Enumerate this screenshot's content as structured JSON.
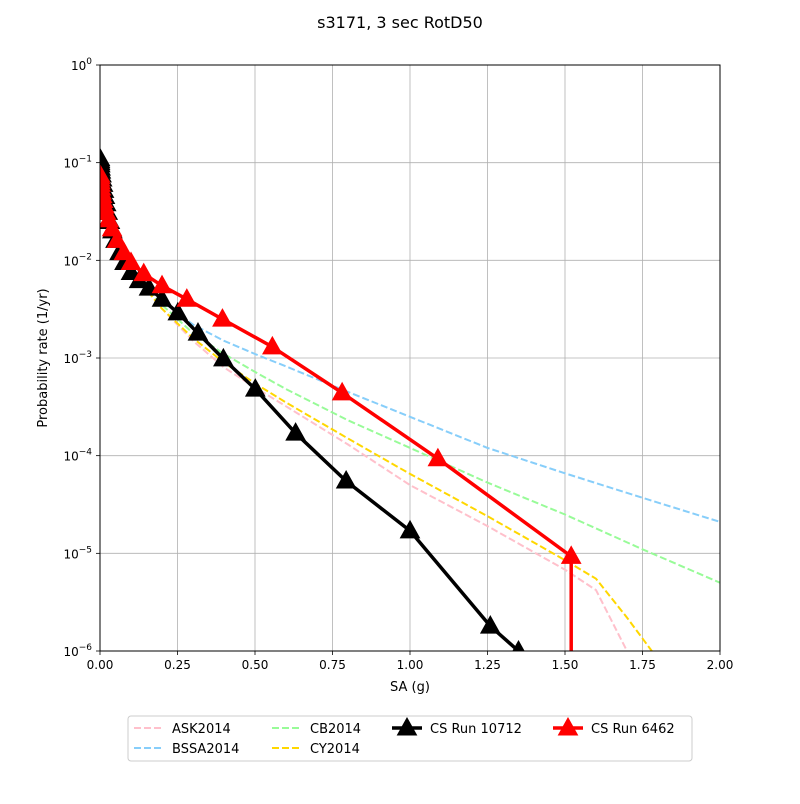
{
  "chart_data": {
    "type": "line",
    "title": "s3171, 3 sec RotD50",
    "xlabel": "SA (g)",
    "ylabel": "Probability rate (1/yr)",
    "xlim": [
      0,
      2.0
    ],
    "ylim": [
      1e-06,
      1
    ],
    "yscale": "log",
    "grid": true,
    "legend_position": "bottom-center",
    "xticks": [
      {
        "value": 0.0,
        "label": "0.00"
      },
      {
        "value": 0.25,
        "label": "0.25"
      },
      {
        "value": 0.5,
        "label": "0.50"
      },
      {
        "value": 0.75,
        "label": "0.75"
      },
      {
        "value": 1.0,
        "label": "1.00"
      },
      {
        "value": 1.25,
        "label": "1.25"
      },
      {
        "value": 1.5,
        "label": "1.50"
      },
      {
        "value": 1.75,
        "label": "1.75"
      },
      {
        "value": 2.0,
        "label": "2.00"
      }
    ],
    "yticks": [
      {
        "value": 1e-06,
        "base": "10",
        "exp": "−6"
      },
      {
        "value": 1e-05,
        "base": "10",
        "exp": "−5"
      },
      {
        "value": 0.0001,
        "base": "10",
        "exp": "−4"
      },
      {
        "value": 0.001,
        "base": "10",
        "exp": "−3"
      },
      {
        "value": 0.01,
        "base": "10",
        "exp": "−2"
      },
      {
        "value": 0.1,
        "base": "10",
        "exp": "−1"
      },
      {
        "value": 1,
        "base": "10",
        "exp": "0"
      }
    ],
    "series": [
      {
        "name": "ASK2014",
        "color": "#ffc0cb",
        "style": "dashed",
        "marker": "none",
        "x": [
          0.0001,
          0.05,
          0.1,
          0.15,
          0.2,
          0.3,
          0.4,
          0.5,
          0.6,
          0.8,
          1.0,
          1.25,
          1.5,
          1.6,
          1.7
        ],
        "y": [
          0.1,
          0.016,
          0.008,
          0.005,
          0.0032,
          0.0015,
          0.0008,
          0.0005,
          0.00032,
          0.00013,
          5e-05,
          1.9e-05,
          6.8e-06,
          4.2e-06,
          1e-06
        ]
      },
      {
        "name": "BSSA2014",
        "color": "#87cefa",
        "style": "dashed",
        "marker": "none",
        "x": [
          0.0001,
          0.05,
          0.1,
          0.15,
          0.2,
          0.3,
          0.4,
          0.5,
          0.6,
          0.8,
          1.0,
          1.25,
          1.5,
          1.75,
          2.0
        ],
        "y": [
          0.1,
          0.016,
          0.008,
          0.0055,
          0.0038,
          0.0022,
          0.0015,
          0.0011,
          0.00082,
          0.00045,
          0.00025,
          0.00012,
          6.6e-05,
          3.7e-05,
          2.1e-05
        ]
      },
      {
        "name": "CB2014",
        "color": "#98fb98",
        "style": "dashed",
        "marker": "none",
        "x": [
          0.0001,
          0.05,
          0.1,
          0.15,
          0.2,
          0.3,
          0.4,
          0.5,
          0.6,
          0.8,
          1.0,
          1.25,
          1.5,
          1.75,
          2.0
        ],
        "y": [
          0.1,
          0.016,
          0.008,
          0.005,
          0.0035,
          0.0018,
          0.0011,
          0.00072,
          0.00048,
          0.00023,
          0.00012,
          5.3e-05,
          2.5e-05,
          1.1e-05,
          5e-06
        ]
      },
      {
        "name": "CY2014",
        "color": "#ffd700",
        "style": "dashed",
        "marker": "none",
        "x": [
          0.0001,
          0.05,
          0.1,
          0.15,
          0.2,
          0.3,
          0.4,
          0.5,
          0.6,
          0.8,
          1.0,
          1.25,
          1.5,
          1.6,
          1.7,
          1.78
        ],
        "y": [
          0.1,
          0.016,
          0.008,
          0.005,
          0.0032,
          0.0016,
          0.0009,
          0.00055,
          0.00035,
          0.00015,
          6.5e-05,
          2.4e-05,
          8.5e-06,
          5.5e-06,
          2.2e-06,
          1e-06
        ]
      },
      {
        "name": "CS Run 10712",
        "color": "#000000",
        "style": "solid",
        "marker": "triangle",
        "x": [
          0.0001,
          0.0002,
          0.0005,
          0.001,
          0.002,
          0.003,
          0.005,
          0.007,
          0.01,
          0.013,
          0.016,
          0.02,
          0.025,
          0.032,
          0.04,
          0.05,
          0.063,
          0.079,
          0.1,
          0.126,
          0.158,
          0.2,
          0.251,
          0.316,
          0.398,
          0.501,
          0.631,
          0.794,
          1.0,
          1.259,
          1.35
        ],
        "y": [
          0.11,
          0.105,
          0.1,
          0.095,
          0.088,
          0.082,
          0.075,
          0.068,
          0.06,
          0.052,
          0.045,
          0.038,
          0.031,
          0.025,
          0.02,
          0.016,
          0.012,
          0.0095,
          0.0075,
          0.0062,
          0.0052,
          0.004,
          0.0029,
          0.0018,
          0.00098,
          0.00048,
          0.00017,
          5.5e-05,
          1.7e-05,
          1.8e-06,
          1e-06
        ]
      },
      {
        "name": "CS Run 6462",
        "color": "#ff0000",
        "style": "solid",
        "marker": "triangle",
        "x": [
          0.0001,
          0.0002,
          0.0005,
          0.001,
          0.002,
          0.003,
          0.005,
          0.007,
          0.01,
          0.014,
          0.02,
          0.028,
          0.039,
          0.055,
          0.077,
          0.1,
          0.141,
          0.2,
          0.28,
          0.395,
          0.556,
          0.781,
          1.09,
          1.52,
          1.52
        ],
        "y": [
          0.075,
          0.072,
          0.068,
          0.064,
          0.06,
          0.055,
          0.05,
          0.046,
          0.041,
          0.036,
          0.031,
          0.026,
          0.021,
          0.016,
          0.012,
          0.0095,
          0.0073,
          0.0055,
          0.004,
          0.0025,
          0.0013,
          0.00044,
          9.3e-05,
          9.3e-06,
          1e-06
        ],
        "marker_x": [
          0.0001,
          0.0002,
          0.0005,
          0.001,
          0.002,
          0.003,
          0.005,
          0.007,
          0.01,
          0.014,
          0.02,
          0.028,
          0.039,
          0.055,
          0.077,
          0.1,
          0.141,
          0.2,
          0.28,
          0.395,
          0.556,
          0.781,
          1.09,
          1.52
        ],
        "marker_y": [
          0.075,
          0.072,
          0.068,
          0.064,
          0.06,
          0.055,
          0.05,
          0.046,
          0.041,
          0.036,
          0.031,
          0.026,
          0.021,
          0.016,
          0.012,
          0.0095,
          0.0073,
          0.0055,
          0.004,
          0.0025,
          0.0013,
          0.00044,
          9.3e-05,
          9.3e-06
        ]
      }
    ]
  }
}
